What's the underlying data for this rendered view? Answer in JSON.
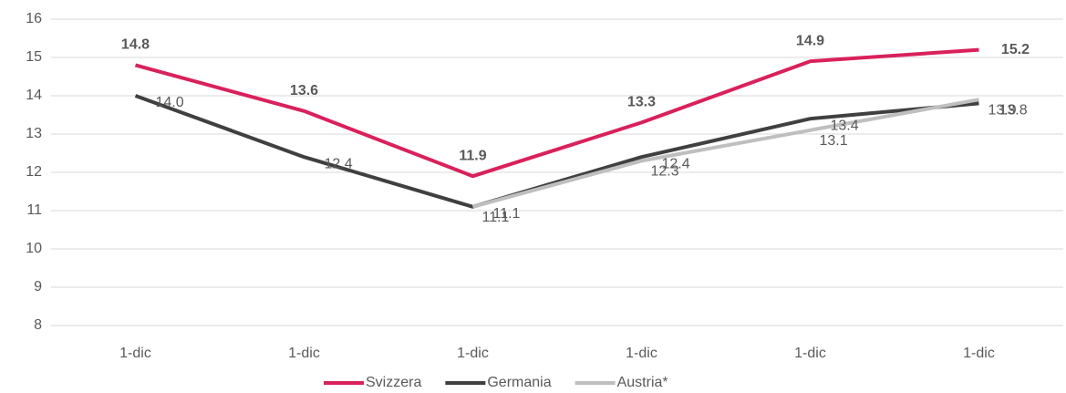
{
  "chart_data": {
    "type": "line",
    "categories": [
      "1-dic",
      "1-dic",
      "1-dic",
      "1-dic",
      "1-dic",
      "1-dic"
    ],
    "series": [
      {
        "name": "Svizzera",
        "color": "#d9215b",
        "label_color": "#c00000",
        "values": [
          14.8,
          13.6,
          11.9,
          13.3,
          14.9,
          15.2
        ],
        "value_labels": [
          "14.8",
          "13.6",
          "11.9",
          "13.3",
          "14.9",
          "15.2"
        ]
      },
      {
        "name": "Germania",
        "color": "#404040",
        "label_color": "#404040",
        "values": [
          14.0,
          12.4,
          11.1,
          12.4,
          13.4,
          13.8
        ],
        "value_labels": [
          "14.0",
          "12.4",
          "11.1",
          "12.4",
          "13.4",
          "13.8"
        ]
      },
      {
        "name": "Austria*",
        "color": "#bfbfbf",
        "label_color": "#a6a6a6",
        "values": [
          null,
          null,
          11.1,
          12.3,
          13.1,
          13.9
        ],
        "value_labels": [
          null,
          null,
          "11.1",
          "12.3",
          "13.1",
          "13.9"
        ]
      }
    ],
    "ylim": [
      8,
      16
    ],
    "yticks": [
      8,
      9,
      10,
      11,
      12,
      13,
      14,
      15,
      16
    ],
    "grid": true
  }
}
